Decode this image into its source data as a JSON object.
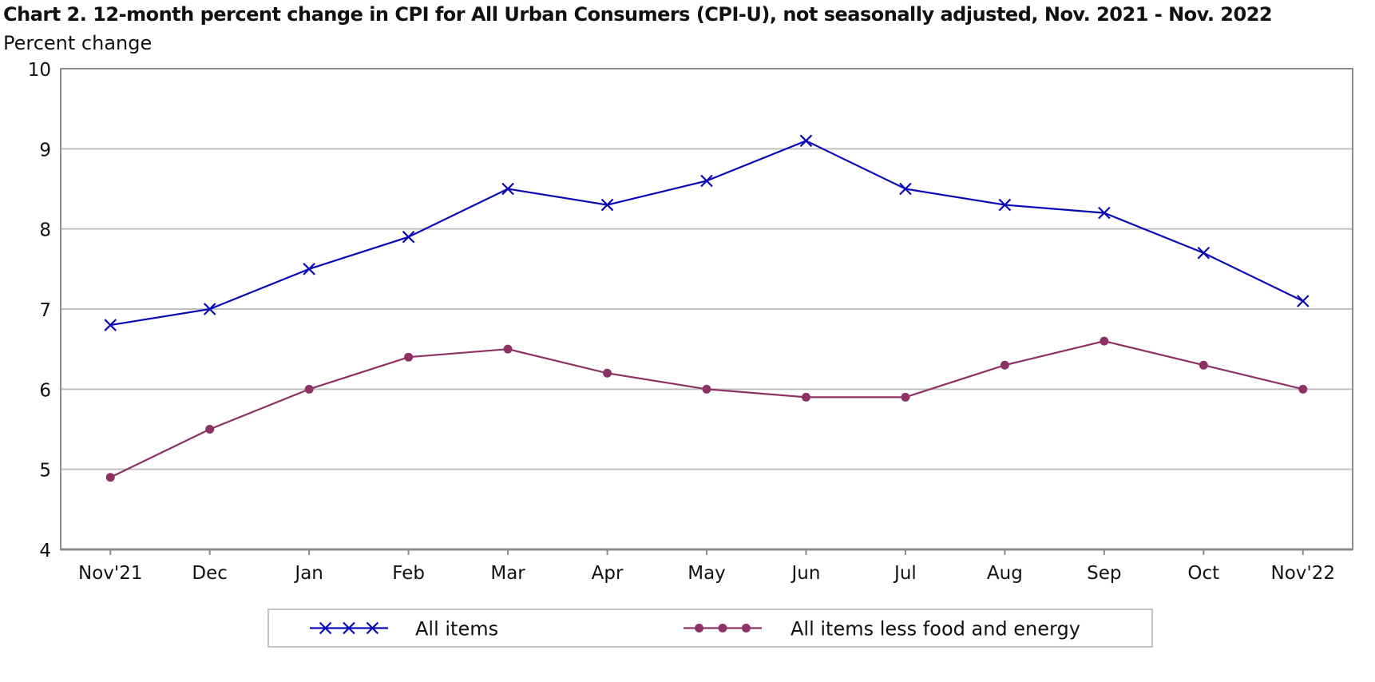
{
  "chart_data": {
    "type": "line",
    "title": "Chart 2. 12-month percent change in CPI for All Urban Consumers (CPI-U), not seasonally adjusted, Nov. 2021 - Nov. 2022",
    "xlabel": "",
    "ylabel": "Percent change",
    "categories": [
      "Nov'21",
      "Dec",
      "Jan",
      "Feb",
      "Mar",
      "Apr",
      "May",
      "Jun",
      "Jul",
      "Aug",
      "Sep",
      "Oct",
      "Nov'22"
    ],
    "ylim": [
      4,
      10
    ],
    "yticks": [
      4,
      5,
      6,
      7,
      8,
      9,
      10
    ],
    "grid": true,
    "legend_position": "bottom",
    "series": [
      {
        "name": "All items",
        "marker": "x",
        "color": "#0a0ab4",
        "values": [
          6.8,
          7.0,
          7.5,
          7.9,
          8.5,
          8.3,
          8.6,
          9.1,
          8.5,
          8.3,
          8.2,
          7.7,
          7.1
        ]
      },
      {
        "name": "All items less food and energy",
        "marker": "circle",
        "color": "#8c3264",
        "values": [
          4.9,
          5.5,
          6.0,
          6.4,
          6.5,
          6.2,
          6.0,
          5.9,
          5.9,
          6.3,
          6.6,
          6.3,
          6.0
        ]
      }
    ]
  },
  "colors": {
    "axis": "#8c8c8c",
    "grid": "#c0c0c0"
  }
}
